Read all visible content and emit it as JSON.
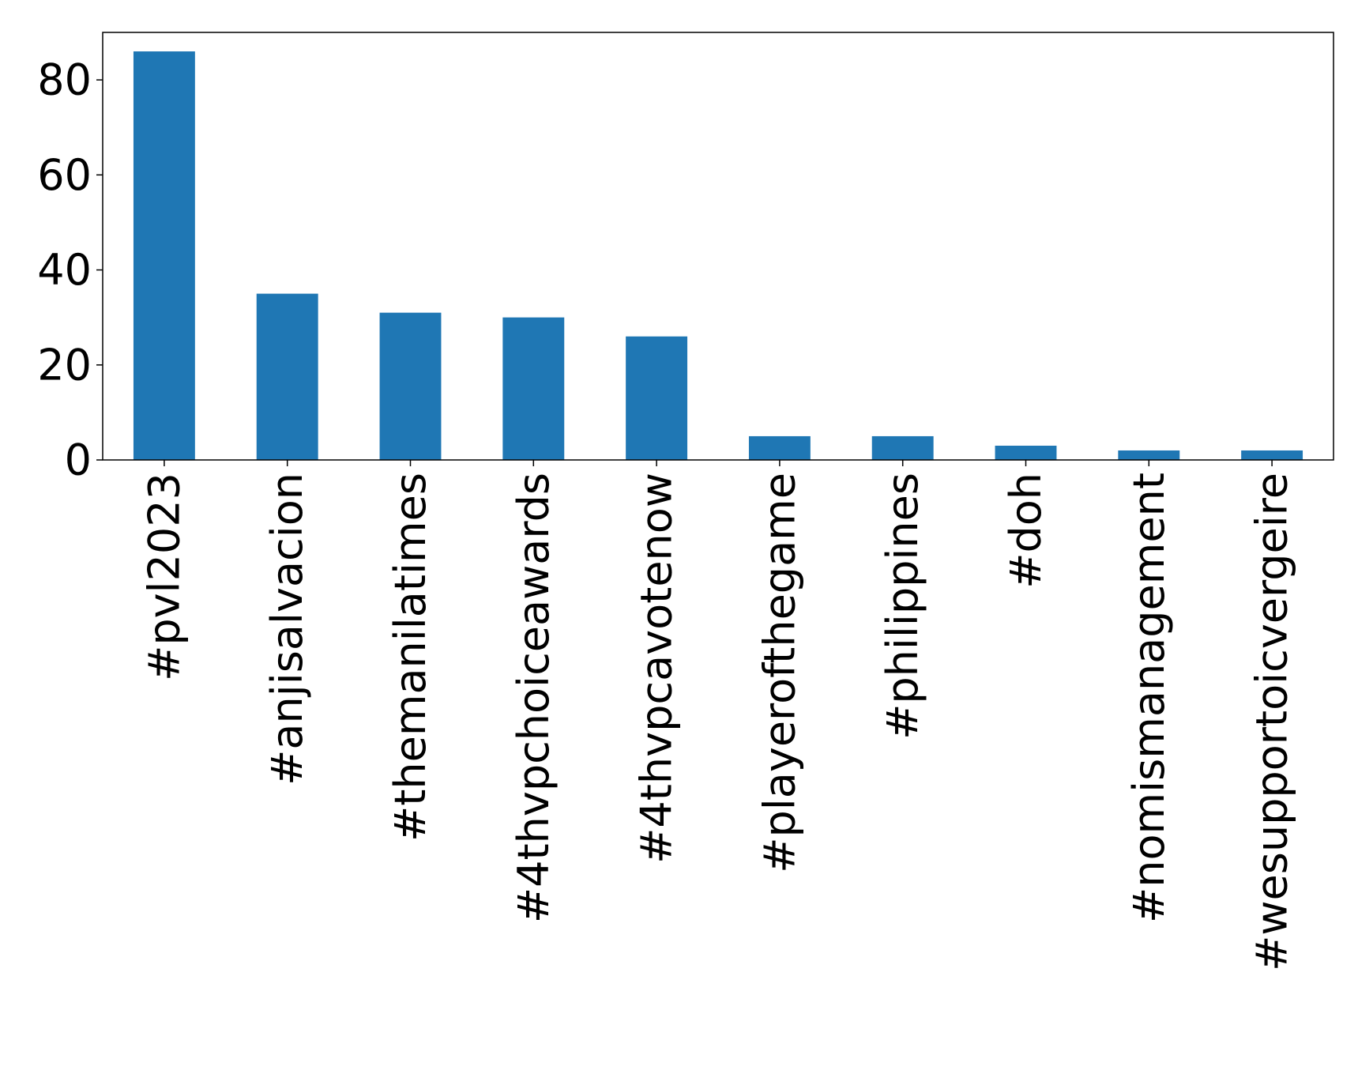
{
  "chart_data": {
    "type": "bar",
    "title": "",
    "xlabel": "",
    "ylabel": "",
    "categories": [
      "#pvl2023",
      "#anjisalvacion",
      "#themanilatimes",
      "#4thvpchoiceawards",
      "#4thvpcavotenow",
      "#playerofthegame",
      "#philippines",
      "#doh",
      "#nomismanagement",
      "#wesupportoicvergeire"
    ],
    "values": [
      86,
      35,
      31,
      30,
      26,
      5,
      5,
      3,
      2,
      2
    ],
    "ylim": [
      0,
      90
    ],
    "yticks": [
      0,
      20,
      40,
      60,
      80
    ],
    "grid": false,
    "bar_color": "#1f77b4"
  }
}
